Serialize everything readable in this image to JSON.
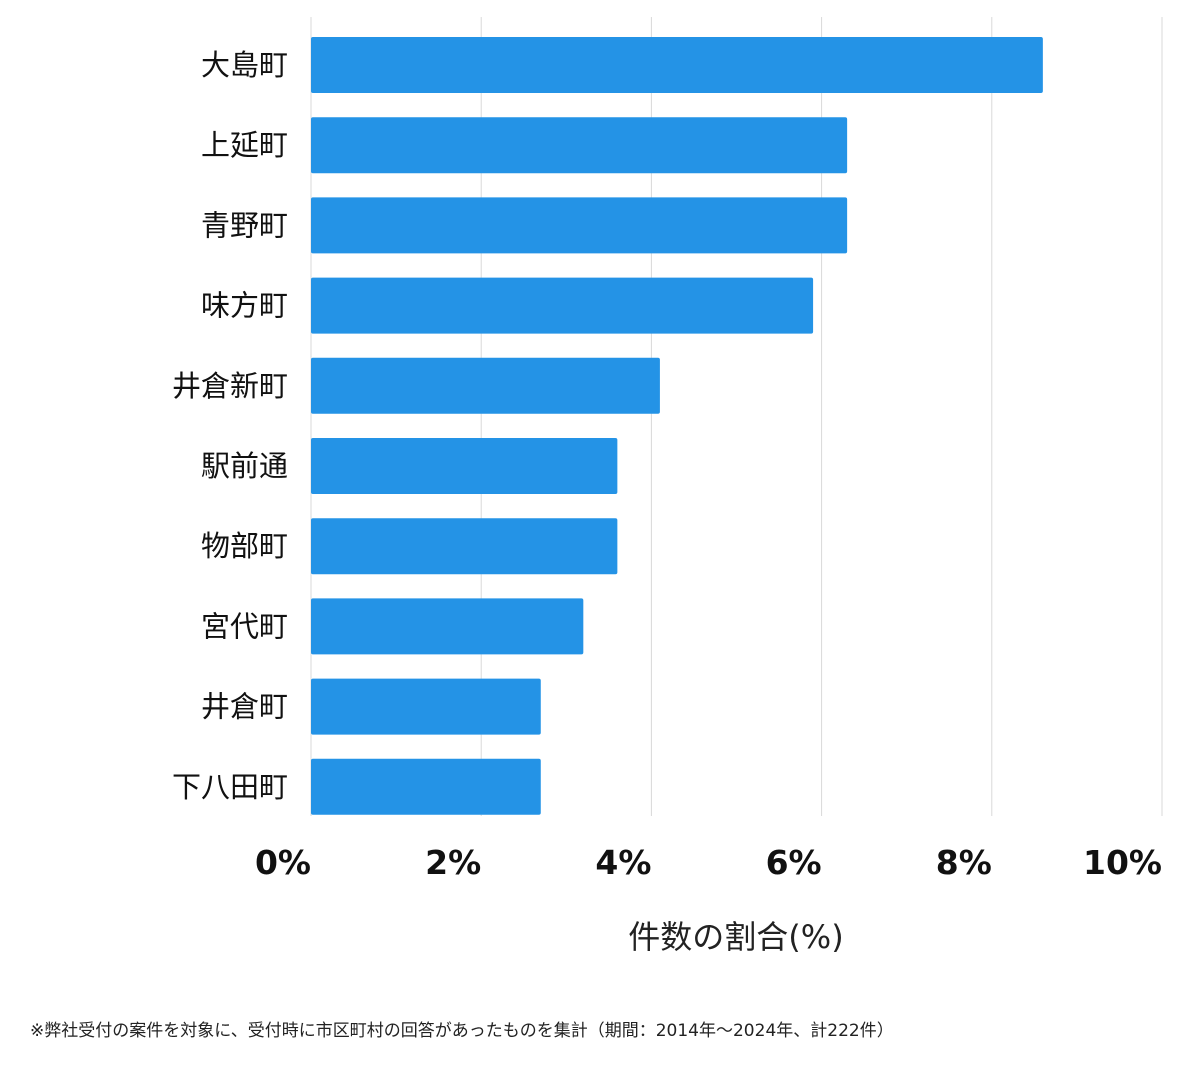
{
  "chart_data": {
    "type": "bar",
    "orientation": "horizontal",
    "categories": [
      "大島町",
      "上延町",
      "青野町",
      "味方町",
      "井倉新町",
      "駅前通",
      "物部町",
      "宮代町",
      "井倉町",
      "下八田町"
    ],
    "values": [
      8.6,
      6.3,
      6.3,
      5.9,
      4.1,
      3.6,
      3.6,
      3.2,
      2.7,
      2.7
    ],
    "xlabel": "件数の割合(%)",
    "ylabel": "",
    "xlim": [
      0,
      10
    ],
    "ticks": [
      0,
      2,
      4,
      6,
      8,
      10
    ],
    "tick_labels": [
      "0%",
      "2%",
      "4%",
      "6%",
      "8%",
      "10%"
    ],
    "bar_color": "#2493e6",
    "grid": true
  },
  "footnote": "※弊社受付の案件を対象に、受付時に市区町村の回答があったものを集計（期間：2014年〜2024年、計222件）"
}
